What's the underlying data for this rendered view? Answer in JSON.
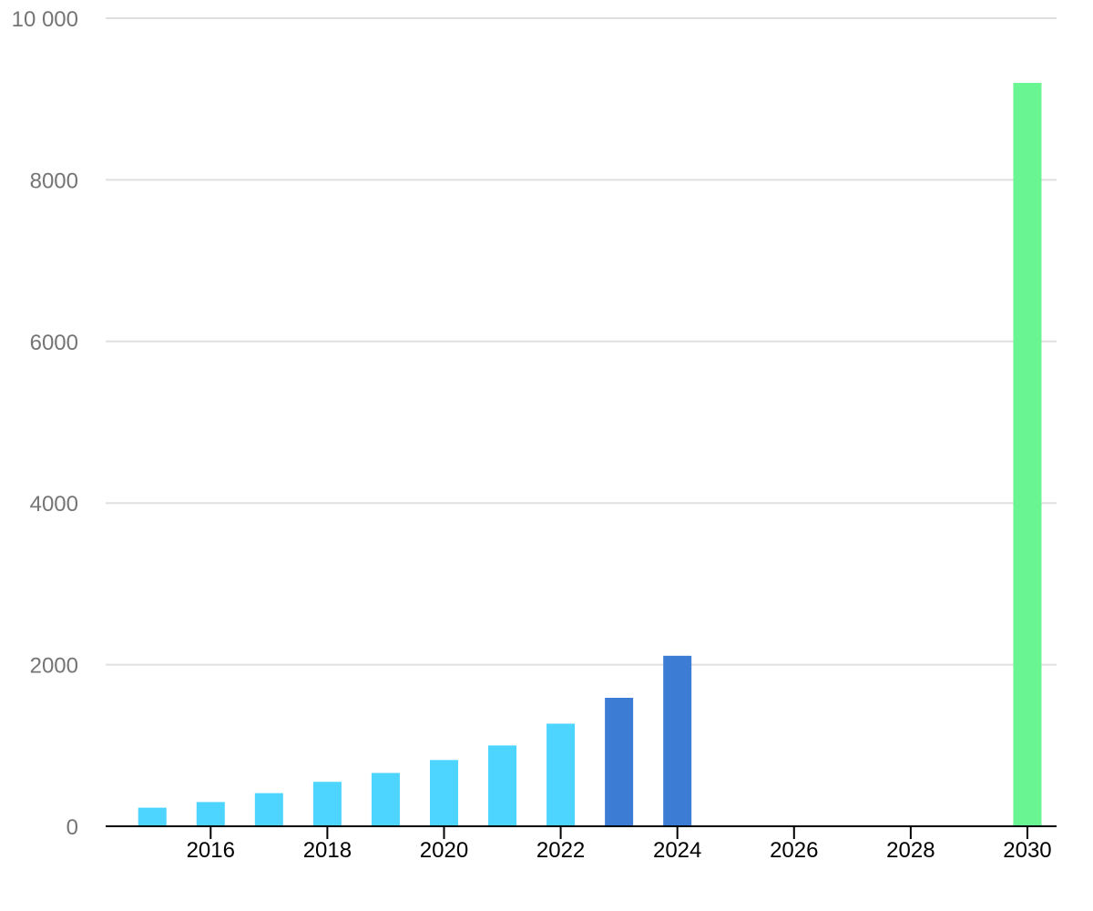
{
  "chart_data": {
    "type": "bar",
    "x": [
      2015,
      2016,
      2017,
      2018,
      2019,
      2020,
      2021,
      2022,
      2023,
      2024,
      2030
    ],
    "values": [
      230,
      300,
      410,
      550,
      660,
      820,
      1000,
      1270,
      1590,
      2110,
      9200
    ],
    "bar_colors": [
      "#4dd5ff",
      "#4dd5ff",
      "#4dd5ff",
      "#4dd5ff",
      "#4dd5ff",
      "#4dd5ff",
      "#4dd5ff",
      "#4dd5ff",
      "#3d7cd4",
      "#3d7cd4",
      "#69f591"
    ],
    "xlim": [
      2014.2,
      2030.5
    ],
    "ylim": [
      0,
      10000
    ],
    "y_ticks": [
      0,
      2000,
      4000,
      6000,
      8000,
      10000
    ],
    "y_tick_labels": [
      "0",
      "2000",
      "4000",
      "6000",
      "8000",
      "10 000"
    ],
    "x_ticks": [
      2016,
      2018,
      2020,
      2022,
      2024,
      2026,
      2028,
      2030
    ],
    "x_tick_labels": [
      "2016",
      "2018",
      "2020",
      "2022",
      "2024",
      "2026",
      "2028",
      "2030"
    ],
    "grid": true,
    "title": "",
    "xlabel": "",
    "ylabel": ""
  }
}
